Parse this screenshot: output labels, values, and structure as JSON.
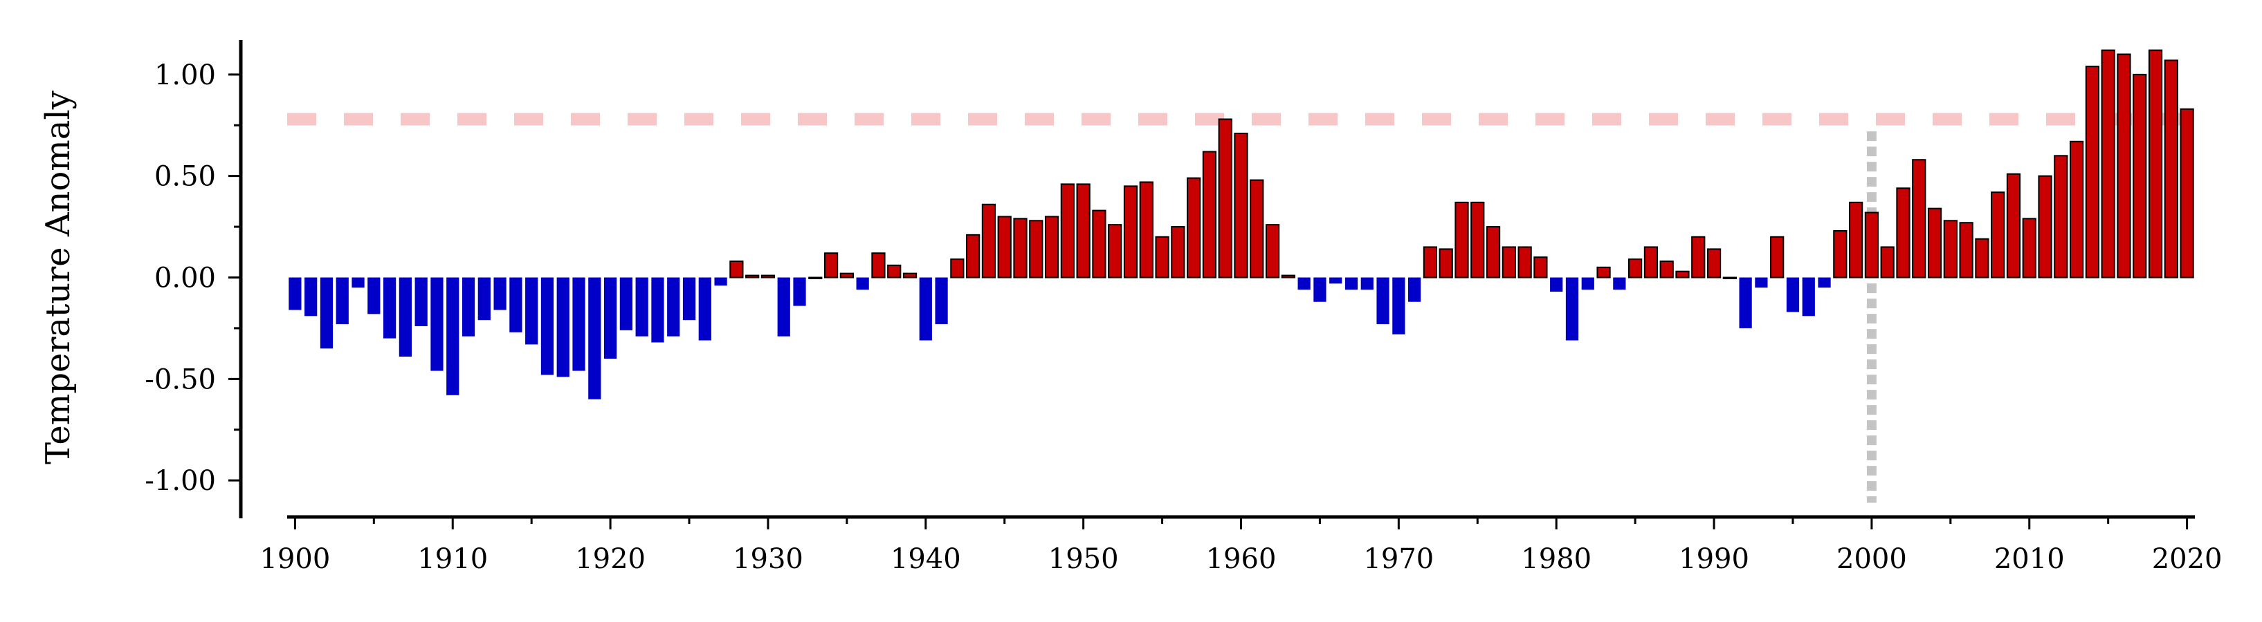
{
  "chart_data": {
    "type": "bar",
    "title": "",
    "xlabel": "",
    "ylabel": "Temperature Anomaly",
    "xlim": [
      1899.5,
      2020.5
    ],
    "ylim": [
      -1.18,
      1.18
    ],
    "x": [
      1900,
      1901,
      1902,
      1903,
      1904,
      1905,
      1906,
      1907,
      1908,
      1909,
      1910,
      1911,
      1912,
      1913,
      1914,
      1915,
      1916,
      1917,
      1918,
      1919,
      1920,
      1921,
      1922,
      1923,
      1924,
      1925,
      1926,
      1927,
      1928,
      1929,
      1930,
      1931,
      1932,
      1933,
      1934,
      1935,
      1936,
      1937,
      1938,
      1939,
      1940,
      1941,
      1942,
      1943,
      1944,
      1945,
      1946,
      1947,
      1948,
      1949,
      1950,
      1951,
      1952,
      1953,
      1954,
      1955,
      1956,
      1957,
      1958,
      1959,
      1960,
      1961,
      1962,
      1963,
      1964,
      1965,
      1966,
      1967,
      1968,
      1969,
      1970,
      1971,
      1972,
      1973,
      1974,
      1975,
      1976,
      1977,
      1978,
      1979,
      1980,
      1981,
      1982,
      1983,
      1984,
      1985,
      1986,
      1987,
      1988,
      1989,
      1990,
      1991,
      1992,
      1993,
      1994,
      1995,
      1996,
      1997,
      1998,
      1999,
      2000,
      2001,
      2002,
      2003,
      2004,
      2005,
      2006,
      2007,
      2008,
      2009,
      2010,
      2011,
      2012,
      2013,
      2014,
      2015,
      2016,
      2017,
      2018,
      2019,
      2020
    ],
    "values": [
      -0.16,
      -0.19,
      -0.35,
      -0.23,
      -0.05,
      -0.18,
      -0.3,
      -0.39,
      -0.24,
      -0.46,
      -0.58,
      -0.29,
      -0.21,
      -0.16,
      -0.27,
      -0.33,
      -0.48,
      -0.49,
      -0.46,
      -0.6,
      -0.4,
      -0.26,
      -0.29,
      -0.32,
      -0.29,
      -0.21,
      -0.31,
      -0.04,
      0.08,
      0.01,
      0.01,
      -0.29,
      -0.14,
      0.0,
      0.12,
      0.02,
      -0.06,
      0.12,
      0.06,
      0.02,
      -0.31,
      -0.23,
      0.09,
      0.21,
      0.36,
      0.3,
      0.29,
      0.28,
      0.3,
      0.46,
      0.46,
      0.33,
      0.26,
      0.45,
      0.47,
      0.2,
      0.25,
      0.49,
      0.62,
      0.78,
      0.71,
      0.48,
      0.26,
      0.01,
      -0.06,
      -0.12,
      -0.03,
      -0.06,
      -0.06,
      -0.23,
      -0.28,
      -0.12,
      0.15,
      0.14,
      0.37,
      0.37,
      0.25,
      0.15,
      0.15,
      0.1,
      -0.07,
      -0.31,
      -0.06,
      0.05,
      -0.06,
      0.09,
      0.15,
      0.08,
      0.03,
      0.2,
      0.14,
      0.0,
      -0.25,
      -0.05,
      0.2,
      -0.17,
      -0.19,
      -0.05,
      0.23,
      0.37,
      0.32,
      0.15,
      0.44,
      0.58,
      0.34,
      0.28,
      0.27,
      0.19,
      0.42,
      0.51,
      0.29,
      0.5,
      0.6,
      0.67,
      1.04,
      1.12,
      1.1,
      1.0,
      1.12,
      1.07,
      0.83
    ],
    "x_ticks": [
      {
        "value": 1900,
        "label": "1900"
      },
      {
        "value": 1910,
        "label": "1910"
      },
      {
        "value": 1920,
        "label": "1920"
      },
      {
        "value": 1930,
        "label": "1930"
      },
      {
        "value": 1940,
        "label": "1940"
      },
      {
        "value": 1950,
        "label": "1950"
      },
      {
        "value": 1960,
        "label": "1960"
      },
      {
        "value": 1970,
        "label": "1970"
      },
      {
        "value": 1980,
        "label": "1980"
      },
      {
        "value": 1990,
        "label": "1990"
      },
      {
        "value": 2000,
        "label": "2000"
      },
      {
        "value": 2010,
        "label": "2010"
      },
      {
        "value": 2020,
        "label": "2020"
      }
    ],
    "y_ticks": [
      {
        "value": 1.0,
        "label": "1.00"
      },
      {
        "value": 0.5,
        "label": "0.50"
      },
      {
        "value": 0.0,
        "label": "0.00"
      },
      {
        "value": -0.5,
        "label": "-0.50"
      },
      {
        "value": -1.0,
        "label": "-1.00"
      }
    ],
    "x_minor_step": 5,
    "y_minor_step": 0.25,
    "reference_lines": [
      {
        "orientation": "horizontal",
        "value": 0.78,
        "style": "dashed",
        "color": "#f7c6c6"
      },
      {
        "orientation": "vertical",
        "value": 2000,
        "style": "dotted",
        "color": "#c4c4c4",
        "y_from": -1.11,
        "y_to": 0.72
      }
    ],
    "colors": {
      "positive": "#c80000",
      "negative": "#0000c8",
      "bar_edge": "#000000"
    },
    "grid": false,
    "legend": "none"
  }
}
